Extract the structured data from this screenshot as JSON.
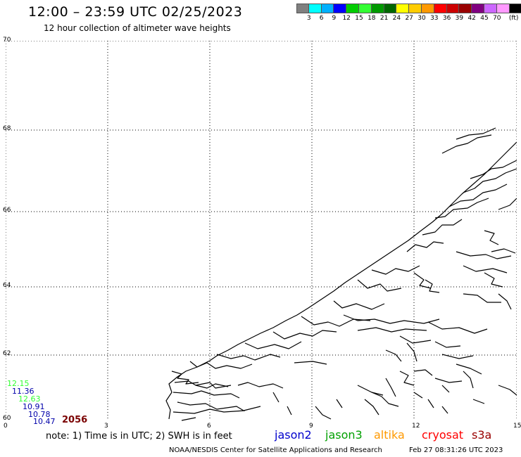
{
  "header": {
    "title": "12:00 – 23:59 UTC 02/25/2023",
    "subtitle": "12 hour collection of altimeter wave heights"
  },
  "colorbar": {
    "colors": [
      "#808080",
      "#00ffff",
      "#00b0ff",
      "#0000ff",
      "#00cc00",
      "#33ff33",
      "#009900",
      "#006600",
      "#ffff00",
      "#ffcc00",
      "#ff9900",
      "#ff0000",
      "#cc0000",
      "#990000",
      "#800080",
      "#cc66ff",
      "#ff99ff",
      "#000000"
    ],
    "labels": [
      "3",
      "6",
      "9",
      "12",
      "15",
      "18",
      "21",
      "24",
      "27",
      "30",
      "33",
      "36",
      "39",
      "42",
      "45",
      "70",
      "(ft)"
    ]
  },
  "axes": {
    "lat_labels": [
      "70",
      "68",
      "66",
      "64",
      "62",
      "60"
    ],
    "lon_labels": [
      "0",
      "3",
      "6",
      "9",
      "12",
      "15"
    ]
  },
  "swh_readings": [
    {
      "value": "12.15",
      "color": "#33ff33"
    },
    {
      "value": "11.36",
      "color": "#0000aa"
    },
    {
      "value": "12.63",
      "color": "#33ff33"
    },
    {
      "value": "10.91",
      "color": "#0000aa"
    },
    {
      "value": "10.78",
      "color": "#0000aa"
    },
    {
      "value": "10.47",
      "color": "#0000aa"
    }
  ],
  "pass_count": "2056",
  "note": "note: 1) Time is in UTC; 2) SWH is in feet",
  "legend": [
    {
      "name": "jason2",
      "color": "#0000cc"
    },
    {
      "name": "jason3",
      "color": "#00a000"
    },
    {
      "name": "altika",
      "color": "#ff9900"
    },
    {
      "name": "cryosat",
      "color": "#ff0000"
    },
    {
      "name": "s3a",
      "color": "#990000"
    }
  ],
  "footer": {
    "credit": "NOAA/NESDIS Center for Satellite Applications and Research",
    "timestamp": "Feb 27 08:31:26 UTC 2023"
  }
}
